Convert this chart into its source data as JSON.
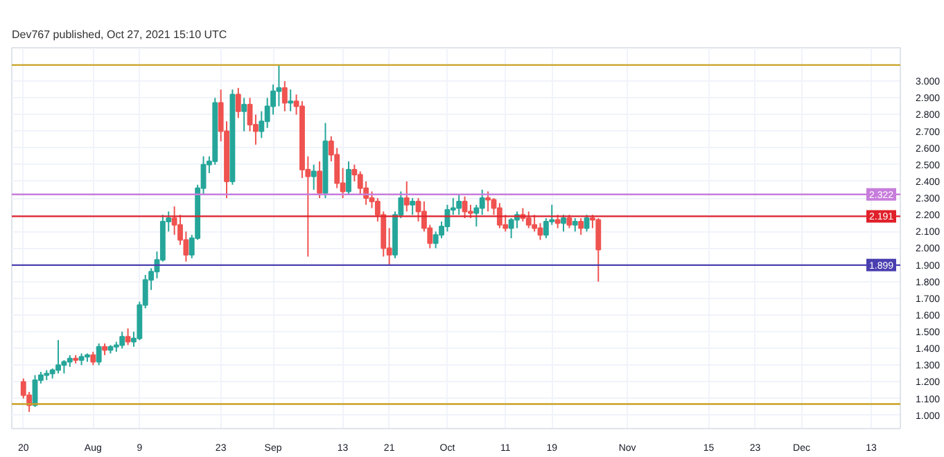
{
  "chart_data": {
    "type": "candlestick",
    "annotations": [
      "Dev767 published, Oct 27, 2021 15:10 UTC"
    ],
    "colors": [
      "#ef5350",
      "#ef5350",
      "#26a69a",
      "#26a69a",
      "#26a69a",
      "#26a69a",
      "#26a69a",
      "#26a69a",
      "#26a69a",
      "#ef5350",
      "#26a69a",
      "#26a69a",
      "#ef5350",
      "#26a69a",
      "#ef5350",
      "#26a69a",
      "#26a69a",
      "#26a69a",
      "#ef5350",
      "#26a69a",
      "#26a69a",
      "#26a69a",
      "#26a69a",
      "#26a69a",
      "#26a69a",
      "#26a69a",
      "#ef5350",
      "#ef5350",
      "#ef5350",
      "#26a69a",
      "#26a69a",
      "#26a69a",
      "#26a69a",
      "#26a69a",
      "#ef5350",
      "#ef5350",
      "#26a69a",
      "#ef5350",
      "#26a69a",
      "#ef5350",
      "#ef5350",
      "#26a69a",
      "#26a69a",
      "#26a69a",
      "#26a69a",
      "#ef5350",
      "#26a69a",
      "#ef5350",
      "#ef5350",
      "#ef5350",
      "#26a69a",
      "#ef5350",
      "#26a69a",
      "#ef5350",
      "#ef5350",
      "#ef5350",
      "#26a69a",
      "#ef5350",
      "#ef5350",
      "#ef5350",
      "#ef5350",
      "#ef5350",
      "#ef5350",
      "#ef5350",
      "#26a69a",
      "#26a69a",
      "#ef5350",
      "#26a69a",
      "#ef5350",
      "#ef5350",
      "#ef5350",
      "#26a69a",
      "#26a69a",
      "#26a69a",
      "#26a69a",
      "#26a69a",
      "#ef5350",
      "#ef5350",
      "#26a69a",
      "#26a69a",
      "#ef5350",
      "#ef5350",
      "#ef5350",
      "#ef5350",
      "#26a69a",
      "#26a69a",
      "#ef5350",
      "#ef5350",
      "#ef5350",
      "#ef5350",
      "#26a69a",
      "#26a69a",
      "#ef5350",
      "#26a69a",
      "#ef5350",
      "#26a69a",
      "#ef5350",
      "#26a69a",
      "#ef5350",
      "#ef5350"
    ],
    "x": [
      "2021-07-20",
      "2021-07-21",
      "2021-07-22",
      "2021-07-23",
      "2021-07-24",
      "2021-07-25",
      "2021-07-26",
      "2021-07-27",
      "2021-07-28",
      "2021-07-29",
      "2021-07-30",
      "2021-07-31",
      "2021-08-01",
      "2021-08-02",
      "2021-08-03",
      "2021-08-04",
      "2021-08-05",
      "2021-08-06",
      "2021-08-07",
      "2021-08-08",
      "2021-08-09",
      "2021-08-10",
      "2021-08-11",
      "2021-08-12",
      "2021-08-13",
      "2021-08-14",
      "2021-08-15",
      "2021-08-16",
      "2021-08-17",
      "2021-08-18",
      "2021-08-19",
      "2021-08-20",
      "2021-08-21",
      "2021-08-22",
      "2021-08-23",
      "2021-08-24",
      "2021-08-25",
      "2021-08-26",
      "2021-08-27",
      "2021-08-28",
      "2021-08-29",
      "2021-08-30",
      "2021-08-31",
      "2021-09-01",
      "2021-09-02",
      "2021-09-03",
      "2021-09-04",
      "2021-09-05",
      "2021-09-06",
      "2021-09-07",
      "2021-09-08",
      "2021-09-09",
      "2021-09-10",
      "2021-09-11",
      "2021-09-12",
      "2021-09-13",
      "2021-09-14",
      "2021-09-15",
      "2021-09-16",
      "2021-09-17",
      "2021-09-18",
      "2021-09-19",
      "2021-09-20",
      "2021-09-21",
      "2021-09-22",
      "2021-09-23",
      "2021-09-24",
      "2021-09-25",
      "2021-09-26",
      "2021-09-27",
      "2021-09-28",
      "2021-09-29",
      "2021-09-30",
      "2021-10-01",
      "2021-10-02",
      "2021-10-03",
      "2021-10-04",
      "2021-10-05",
      "2021-10-06",
      "2021-10-07",
      "2021-10-08",
      "2021-10-09",
      "2021-10-10",
      "2021-10-11",
      "2021-10-12",
      "2021-10-13",
      "2021-10-14",
      "2021-10-15",
      "2021-10-16",
      "2021-10-17",
      "2021-10-18",
      "2021-10-19",
      "2021-10-20",
      "2021-10-21",
      "2021-10-22",
      "2021-10-23",
      "2021-10-24",
      "2021-10-25",
      "2021-10-26",
      "2021-10-27"
    ],
    "ohlc": [
      [
        1.2,
        1.22,
        1.1,
        1.12
      ],
      [
        1.12,
        1.14,
        1.02,
        1.06
      ],
      [
        1.06,
        1.24,
        1.05,
        1.21
      ],
      [
        1.21,
        1.26,
        1.19,
        1.24
      ],
      [
        1.24,
        1.27,
        1.21,
        1.25
      ],
      [
        1.25,
        1.28,
        1.22,
        1.27
      ],
      [
        1.27,
        1.45,
        1.25,
        1.3
      ],
      [
        1.3,
        1.33,
        1.25,
        1.32
      ],
      [
        1.32,
        1.36,
        1.29,
        1.34
      ],
      [
        1.34,
        1.36,
        1.31,
        1.33
      ],
      [
        1.33,
        1.37,
        1.3,
        1.35
      ],
      [
        1.35,
        1.37,
        1.32,
        1.36
      ],
      [
        1.36,
        1.38,
        1.3,
        1.32
      ],
      [
        1.32,
        1.43,
        1.3,
        1.41
      ],
      [
        1.41,
        1.43,
        1.36,
        1.39
      ],
      [
        1.39,
        1.42,
        1.37,
        1.41
      ],
      [
        1.41,
        1.44,
        1.38,
        1.42
      ],
      [
        1.42,
        1.5,
        1.4,
        1.47
      ],
      [
        1.47,
        1.52,
        1.42,
        1.44
      ],
      [
        1.44,
        1.5,
        1.41,
        1.46
      ],
      [
        1.46,
        1.68,
        1.45,
        1.66
      ],
      [
        1.66,
        1.84,
        1.64,
        1.81
      ],
      [
        1.81,
        1.88,
        1.75,
        1.86
      ],
      [
        1.86,
        1.98,
        1.82,
        1.93
      ],
      [
        1.93,
        2.2,
        1.92,
        2.16
      ],
      [
        2.16,
        2.22,
        2.1,
        2.18
      ],
      [
        2.18,
        2.25,
        2.08,
        2.14
      ],
      [
        2.14,
        2.2,
        2.02,
        2.05
      ],
      [
        2.05,
        2.1,
        1.92,
        1.96
      ],
      [
        1.96,
        2.08,
        1.94,
        2.06
      ],
      [
        2.06,
        2.38,
        2.05,
        2.36
      ],
      [
        2.36,
        2.55,
        2.32,
        2.5
      ],
      [
        2.5,
        2.55,
        2.45,
        2.52
      ],
      [
        2.52,
        2.9,
        2.5,
        2.87
      ],
      [
        2.87,
        2.95,
        2.64,
        2.7
      ],
      [
        2.7,
        2.76,
        2.3,
        2.4
      ],
      [
        2.4,
        2.95,
        2.38,
        2.92
      ],
      [
        2.92,
        2.96,
        2.78,
        2.82
      ],
      [
        2.82,
        2.9,
        2.7,
        2.86
      ],
      [
        2.86,
        2.9,
        2.7,
        2.74
      ],
      [
        2.74,
        2.8,
        2.62,
        2.7
      ],
      [
        2.7,
        2.82,
        2.66,
        2.76
      ],
      [
        2.76,
        2.9,
        2.72,
        2.85
      ],
      [
        2.85,
        2.98,
        2.8,
        2.94
      ],
      [
        2.94,
        3.1,
        2.85,
        2.96
      ],
      [
        2.96,
        3.0,
        2.82,
        2.87
      ],
      [
        2.87,
        2.95,
        2.82,
        2.88
      ],
      [
        2.88,
        2.92,
        2.8,
        2.85
      ],
      [
        2.85,
        2.88,
        2.42,
        2.47
      ],
      [
        2.47,
        2.55,
        1.95,
        2.43
      ],
      [
        2.43,
        2.5,
        2.35,
        2.46
      ],
      [
        2.46,
        2.52,
        2.3,
        2.33
      ],
      [
        2.33,
        2.75,
        2.3,
        2.64
      ],
      [
        2.64,
        2.67,
        2.52,
        2.56
      ],
      [
        2.56,
        2.6,
        2.36,
        2.39
      ],
      [
        2.39,
        2.48,
        2.3,
        2.34
      ],
      [
        2.34,
        2.52,
        2.32,
        2.47
      ],
      [
        2.47,
        2.5,
        2.4,
        2.44
      ],
      [
        2.44,
        2.46,
        2.32,
        2.36
      ],
      [
        2.36,
        2.4,
        2.26,
        2.3
      ],
      [
        2.3,
        2.34,
        2.24,
        2.28
      ],
      [
        2.28,
        2.3,
        2.16,
        2.2
      ],
      [
        2.2,
        2.22,
        1.95,
        2.0
      ],
      [
        2.0,
        2.12,
        1.9,
        1.96
      ],
      [
        1.96,
        2.22,
        1.94,
        2.2
      ],
      [
        2.2,
        2.34,
        2.18,
        2.3
      ],
      [
        2.3,
        2.4,
        2.22,
        2.26
      ],
      [
        2.26,
        2.3,
        2.2,
        2.28
      ],
      [
        2.28,
        2.3,
        2.16,
        2.22
      ],
      [
        2.22,
        2.28,
        2.1,
        2.12
      ],
      [
        2.12,
        2.14,
        2.0,
        2.03
      ],
      [
        2.03,
        2.1,
        2.0,
        2.08
      ],
      [
        2.08,
        2.16,
        2.06,
        2.13
      ],
      [
        2.13,
        2.26,
        2.1,
        2.23
      ],
      [
        2.23,
        2.3,
        2.2,
        2.24
      ],
      [
        2.24,
        2.32,
        2.2,
        2.28
      ],
      [
        2.28,
        2.31,
        2.18,
        2.22
      ],
      [
        2.22,
        2.26,
        2.18,
        2.21
      ],
      [
        2.21,
        2.26,
        2.13,
        2.24
      ],
      [
        2.24,
        2.35,
        2.2,
        2.3
      ],
      [
        2.3,
        2.34,
        2.22,
        2.29
      ],
      [
        2.29,
        2.3,
        2.2,
        2.24
      ],
      [
        2.24,
        2.27,
        2.12,
        2.14
      ],
      [
        2.14,
        2.2,
        2.1,
        2.12
      ],
      [
        2.12,
        2.18,
        2.06,
        2.17
      ],
      [
        2.17,
        2.22,
        2.12,
        2.2
      ],
      [
        2.2,
        2.24,
        2.16,
        2.18
      ],
      [
        2.18,
        2.22,
        2.12,
        2.14
      ],
      [
        2.14,
        2.2,
        2.1,
        2.12
      ],
      [
        2.12,
        2.15,
        2.05,
        2.08
      ],
      [
        2.08,
        2.18,
        2.06,
        2.16
      ],
      [
        2.16,
        2.26,
        2.14,
        2.17
      ],
      [
        2.17,
        2.2,
        2.12,
        2.15
      ],
      [
        2.15,
        2.2,
        2.1,
        2.18
      ],
      [
        2.18,
        2.2,
        2.12,
        2.14
      ],
      [
        2.14,
        2.18,
        2.1,
        2.16
      ],
      [
        2.16,
        2.18,
        2.08,
        2.12
      ],
      [
        2.12,
        2.2,
        2.1,
        2.18
      ],
      [
        2.18,
        2.2,
        2.12,
        2.17
      ],
      [
        2.17,
        2.18,
        1.8,
        1.992
      ]
    ],
    "xlim": [
      "2021-07-18",
      "2021-12-18"
    ],
    "xticks": [
      {
        "value": "2021-07-20",
        "label": "20"
      },
      {
        "value": "2021-08-01",
        "label": "Aug"
      },
      {
        "value": "2021-08-09",
        "label": "9"
      },
      {
        "value": "2021-08-23",
        "label": "23"
      },
      {
        "value": "2021-09-01",
        "label": "Sep"
      },
      {
        "value": "2021-09-13",
        "label": "13"
      },
      {
        "value": "2021-09-21",
        "label": "21"
      },
      {
        "value": "2021-10-01",
        "label": "Oct"
      },
      {
        "value": "2021-10-11",
        "label": "11"
      },
      {
        "value": "2021-10-19",
        "label": "19"
      },
      {
        "value": "2021-11-01",
        "label": "Nov"
      },
      {
        "value": "2021-11-15",
        "label": "15"
      },
      {
        "value": "2021-11-23",
        "label": "23"
      },
      {
        "value": "2021-12-01",
        "label": "Dec"
      },
      {
        "value": "2021-12-13",
        "label": "13"
      }
    ],
    "ylim": [
      0.92,
      3.2
    ],
    "yticks": [
      {
        "value": 1.0,
        "label": "1.000"
      },
      {
        "value": 1.1,
        "label": "1.100"
      },
      {
        "value": 1.2,
        "label": "1.200"
      },
      {
        "value": 1.3,
        "label": "1.300"
      },
      {
        "value": 1.4,
        "label": "1.400"
      },
      {
        "value": 1.5,
        "label": "1.500"
      },
      {
        "value": 1.6,
        "label": "1.600"
      },
      {
        "value": 1.7,
        "label": "1.700"
      },
      {
        "value": 1.8,
        "label": "1.800"
      },
      {
        "value": 1.9,
        "label": "1.900"
      },
      {
        "value": 2.0,
        "label": "2.000"
      },
      {
        "value": 2.1,
        "label": "2.100"
      },
      {
        "value": 2.2,
        "label": "2.200"
      },
      {
        "value": 2.3,
        "label": "2.300"
      },
      {
        "value": 2.4,
        "label": "2.400"
      },
      {
        "value": 2.5,
        "label": "2.500"
      },
      {
        "value": 2.6,
        "label": "2.600"
      },
      {
        "value": 2.7,
        "label": "2.700"
      },
      {
        "value": 2.8,
        "label": "2.800"
      },
      {
        "value": 2.9,
        "label": "2.900"
      },
      {
        "value": 3.0,
        "label": "3.000"
      }
    ],
    "ref_lines": [
      {
        "axis": "y",
        "value": 3.097,
        "color": "#c9a227"
      },
      {
        "axis": "y",
        "value": 2.322,
        "label": "2.322",
        "color": "#c77ddb"
      },
      {
        "axis": "y",
        "value": 2.191,
        "label": "2.191",
        "color": "#e0202a"
      },
      {
        "axis": "y",
        "value": 1.899,
        "label": "1.899",
        "color": "#4a3fb0"
      },
      {
        "axis": "y",
        "value": 1.067,
        "color": "#c9a227"
      }
    ],
    "grid": true
  }
}
